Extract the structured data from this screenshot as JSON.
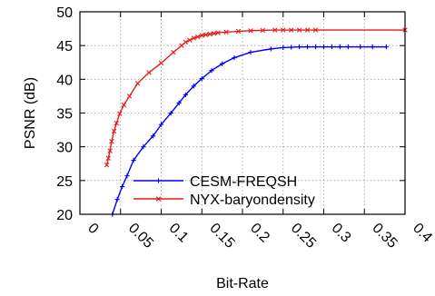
{
  "chart_data": {
    "type": "line",
    "title": "",
    "xlabel": "Bit-Rate",
    "ylabel": "PSNR (dB)",
    "xlim": [
      0,
      0.4
    ],
    "ylim": [
      20,
      50
    ],
    "xticks": [
      "0",
      "0.05",
      "0.1",
      "0.15",
      "0.2",
      "0.25",
      "0.3",
      "0.35",
      "0.4"
    ],
    "yticks": [
      "20",
      "25",
      "30",
      "35",
      "40",
      "45",
      "50"
    ],
    "grid": true,
    "legend_position": "bottom-right",
    "series": [
      {
        "name": "CESM-FREQSH",
        "color": "#0000ff",
        "marker": "plus",
        "points": [
          [
            0.04,
            20.0
          ],
          [
            0.046,
            22.2
          ],
          [
            0.052,
            24.1
          ],
          [
            0.058,
            25.7
          ],
          [
            0.066,
            28.0
          ],
          [
            0.078,
            30.0
          ],
          [
            0.09,
            31.6
          ],
          [
            0.1,
            33.3
          ],
          [
            0.112,
            35.0
          ],
          [
            0.122,
            36.5
          ],
          [
            0.13,
            37.7
          ],
          [
            0.14,
            39.0
          ],
          [
            0.15,
            40.1
          ],
          [
            0.162,
            41.3
          ],
          [
            0.175,
            42.3
          ],
          [
            0.19,
            43.2
          ],
          [
            0.21,
            44.0
          ],
          [
            0.235,
            44.5
          ],
          [
            0.25,
            44.7
          ],
          [
            0.26,
            44.75
          ],
          [
            0.27,
            44.8
          ],
          [
            0.28,
            44.8
          ],
          [
            0.29,
            44.8
          ],
          [
            0.3,
            44.8
          ],
          [
            0.31,
            44.8
          ],
          [
            0.32,
            44.8
          ],
          [
            0.33,
            44.8
          ],
          [
            0.345,
            44.8
          ],
          [
            0.36,
            44.8
          ],
          [
            0.377,
            44.8
          ]
        ]
      },
      {
        "name": "NYX-baryondensity",
        "color": "#e81a1a",
        "marker": "cross",
        "points": [
          [
            0.033,
            27.3
          ],
          [
            0.035,
            28.3
          ],
          [
            0.037,
            29.4
          ],
          [
            0.039,
            30.8
          ],
          [
            0.042,
            32.3
          ],
          [
            0.045,
            33.5
          ],
          [
            0.049,
            34.9
          ],
          [
            0.054,
            36.2
          ],
          [
            0.061,
            37.5
          ],
          [
            0.071,
            39.4
          ],
          [
            0.085,
            41.0
          ],
          [
            0.1,
            42.4
          ],
          [
            0.115,
            44.0
          ],
          [
            0.125,
            45.0
          ],
          [
            0.13,
            45.5
          ],
          [
            0.135,
            45.8
          ],
          [
            0.14,
            46.1
          ],
          [
            0.145,
            46.3
          ],
          [
            0.15,
            46.5
          ],
          [
            0.155,
            46.6
          ],
          [
            0.16,
            46.7
          ],
          [
            0.165,
            46.8
          ],
          [
            0.17,
            46.9
          ],
          [
            0.18,
            47.0
          ],
          [
            0.195,
            47.1
          ],
          [
            0.21,
            47.2
          ],
          [
            0.225,
            47.25
          ],
          [
            0.24,
            47.3
          ],
          [
            0.25,
            47.3
          ],
          [
            0.26,
            47.3
          ],
          [
            0.27,
            47.3
          ],
          [
            0.28,
            47.3
          ],
          [
            0.29,
            47.3
          ],
          [
            0.4,
            47.3
          ]
        ]
      }
    ]
  }
}
